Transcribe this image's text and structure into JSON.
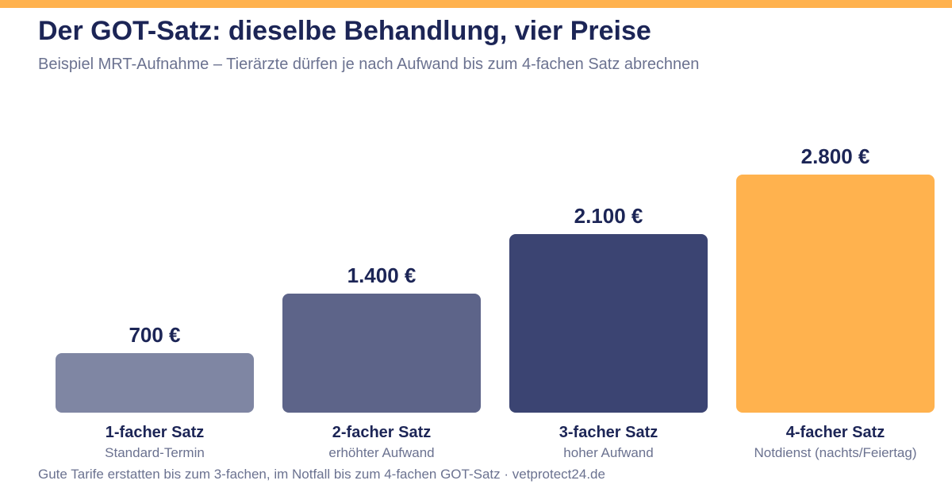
{
  "header": {
    "title": "Der GOT-Satz: dieselbe Behandlung, vier Preise",
    "subtitle": "Beispiel MRT-Aufnahme – Tierärzte dürfen je nach Aufwand bis zum 4-fachen Satz abrechnen"
  },
  "footer": {
    "note": "Gute Tarife erstatten bis zum 3-fachen, im Notfall bis zum 4-fachen GOT-Satz · vetprotect24.de"
  },
  "colors": {
    "accent": "#ffb24e",
    "text_dark": "#1c2556",
    "text_muted": "#6b7290"
  },
  "chart_data": {
    "type": "bar",
    "categories": [
      "1-facher Satz",
      "2-facher Satz",
      "3-facher Satz",
      "4-facher Satz"
    ],
    "subcategories": [
      "Standard-Termin",
      "erhöhter Aufwand",
      "hoher Aufwand",
      "Notdienst (nachts/Feiertag)"
    ],
    "values": [
      700,
      1400,
      2100,
      2800
    ],
    "value_labels": [
      "700 €",
      "1.400 €",
      "2.100 €",
      "2.800 €"
    ],
    "colors": [
      "#7f86a3",
      "#5d6489",
      "#3b4472",
      "#ffb24e"
    ],
    "ylim": [
      0,
      2800
    ],
    "grid": false,
    "legend": "none"
  }
}
